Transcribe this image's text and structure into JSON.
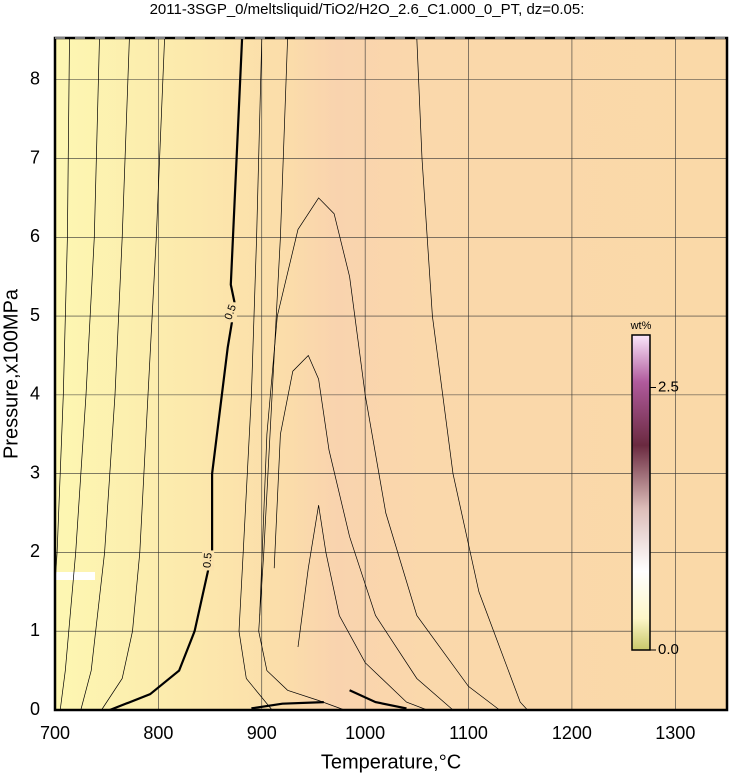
{
  "chart_data": {
    "type": "contour",
    "title": "2011-3SGP_0/meltsliquid/TiO2/H2O_2.6_C1.000_0_PT, dz=0.05:",
    "xlabel": "Temperature,°C",
    "ylabel": "Pressure,x100MPa",
    "xlim": [
      700,
      1350
    ],
    "ylim": [
      0,
      8.53
    ],
    "xticks": [
      700,
      800,
      900,
      1000,
      1100,
      1200,
      1300
    ],
    "yticks": [
      0,
      1,
      2,
      3,
      4,
      5,
      6,
      7,
      8
    ],
    "grid": true,
    "colorbar": {
      "label": "wt%",
      "lim": [
        0,
        3.0
      ],
      "ticks": [
        {
          "value": 0,
          "label": "0.0"
        },
        2.5
      ]
    },
    "contours": [
      {
        "level": 0.5,
        "bold": true,
        "x": [
          753,
          792,
          820,
          835,
          852,
          852,
          867,
          874,
          870,
          881
        ],
        "y": [
          0,
          0.2,
          0.5,
          1.0,
          2.0,
          3.0,
          4.6,
          5.15,
          5.4,
          8.53
        ]
      },
      {
        "bold": true,
        "x": [
          890,
          920,
          960
        ],
        "y": [
          0.02,
          0.08,
          0.1
        ]
      },
      {
        "bold": true,
        "x": [
          985,
          1010,
          1040
        ],
        "y": [
          0.25,
          0.1,
          0.02
        ]
      },
      {
        "bold": false,
        "x": [
          714,
          712,
          708,
          702,
          700
        ],
        "y": [
          8.53,
          6,
          4,
          2,
          1.6
        ]
      },
      {
        "bold": false,
        "x": [
          743,
          738,
          730,
          720,
          710,
          705
        ],
        "y": [
          8.53,
          6,
          4,
          2,
          0.5,
          0
        ]
      },
      {
        "bold": false,
        "x": [
          772,
          765,
          758,
          748,
          735,
          725
        ],
        "y": [
          8.53,
          6,
          4,
          2,
          0.5,
          0
        ]
      },
      {
        "bold": false,
        "x": [
          806,
          798,
          790,
          782,
          775,
          765,
          745
        ],
        "y": [
          8.53,
          6,
          4,
          2,
          1,
          0.4,
          0
        ]
      },
      {
        "bold": false,
        "x": [
          900,
          895,
          890,
          882,
          878,
          885,
          910
        ],
        "y": [
          8.53,
          6,
          4,
          2,
          1,
          0.4,
          0
        ]
      },
      {
        "bold": false,
        "x": [
          925,
          918,
          910,
          902,
          897,
          905,
          925,
          955,
          980
        ],
        "y": [
          8.53,
          6,
          4,
          2,
          1,
          0.5,
          0.25,
          0.12,
          0
        ]
      },
      {
        "bold": false,
        "x": [
          1050,
          1055,
          1065,
          1085,
          1110,
          1150,
          1157
        ],
        "y": [
          8.53,
          7,
          5,
          3,
          1.5,
          0.1,
          0
        ]
      },
      {
        "bold": false,
        "x": [
          898,
          905,
          915,
          935,
          955,
          970,
          985,
          1000,
          1020,
          1050,
          1100,
          1130
        ],
        "y": [
          1.2,
          3.5,
          5,
          6.1,
          6.5,
          6.3,
          5.5,
          4,
          2.5,
          1.2,
          0.3,
          0
        ]
      },
      {
        "bold": false,
        "x": [
          912,
          918,
          930,
          945,
          955,
          965,
          985,
          1010,
          1050,
          1085
        ],
        "y": [
          1.8,
          3.5,
          4.3,
          4.5,
          4.2,
          3.3,
          2.2,
          1.2,
          0.4,
          0
        ]
      },
      {
        "bold": false,
        "x": [
          935,
          945,
          955,
          962,
          975,
          1000,
          1040,
          1060
        ],
        "y": [
          0.8,
          1.8,
          2.6,
          2,
          1.2,
          0.6,
          0.1,
          0
        ]
      }
    ]
  }
}
